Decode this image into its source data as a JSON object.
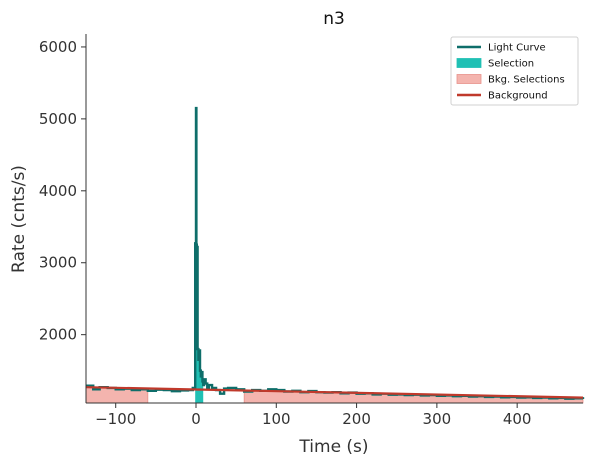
{
  "chart_data": {
    "type": "line",
    "title": "n3",
    "xlabel": "Time (s)",
    "ylabel": "Rate (cnts/s)",
    "xlim": [
      -137,
      482
    ],
    "ylim": [
      1050,
      6180
    ],
    "xticks": [
      -100,
      0,
      100,
      200,
      300,
      400
    ],
    "xtick_labels": [
      "−100",
      "0",
      "100",
      "200",
      "300",
      "400"
    ],
    "yticks": [
      2000,
      3000,
      4000,
      5000,
      6000
    ],
    "ytick_labels": [
      "2000",
      "3000",
      "4000",
      "5000",
      "6000"
    ],
    "grid": false,
    "legend_position": "top-right",
    "colors": {
      "light_curve": "#0e6e6a",
      "selection": "#20c0b4",
      "bkg_selection_fill": "#f4b4ae",
      "bkg_selection_edge": "#e8918a",
      "background": "#c0392b"
    },
    "legend": [
      {
        "label": "Light Curve",
        "kind": "line",
        "color": "#0e6e6a"
      },
      {
        "label": "Selection",
        "kind": "patch",
        "color": "#20c0b4"
      },
      {
        "label": "Bkg. Selections",
        "kind": "patch",
        "color": "#f4b4ae"
      },
      {
        "label": "Background",
        "kind": "line",
        "color": "#c0392b"
      }
    ],
    "series": [
      {
        "name": "Light Curve",
        "x": [
          -137,
          -128,
          -120,
          -110,
          -100,
          -90,
          -80,
          -70,
          -60,
          -50,
          -40,
          -30,
          -20,
          -10,
          -4,
          -2,
          -1,
          0,
          0.5,
          1,
          2,
          3,
          4,
          5,
          6,
          7,
          8,
          9,
          10,
          12,
          14,
          16,
          20,
          25,
          30,
          35,
          40,
          50,
          60,
          70,
          80,
          90,
          100,
          110,
          120,
          130,
          140,
          150,
          160,
          170,
          180,
          190,
          200,
          210,
          220,
          230,
          240,
          250,
          260,
          270,
          280,
          290,
          300,
          310,
          320,
          330,
          340,
          350,
          360,
          370,
          380,
          390,
          400,
          410,
          420,
          430,
          440,
          450,
          460,
          470,
          482
        ],
        "y": [
          1290,
          1240,
          1270,
          1260,
          1240,
          1250,
          1230,
          1240,
          1220,
          1235,
          1230,
          1215,
          1225,
          1230,
          1260,
          1240,
          3270,
          5150,
          3250,
          3220,
          1800,
          1650,
          1780,
          1500,
          1420,
          1480,
          1350,
          1300,
          1380,
          1320,
          1250,
          1300,
          1260,
          1230,
          1180,
          1250,
          1260,
          1240,
          1210,
          1230,
          1220,
          1240,
          1230,
          1210,
          1220,
          1200,
          1215,
          1200,
          1195,
          1200,
          1185,
          1195,
          1180,
          1185,
          1170,
          1180,
          1165,
          1170,
          1160,
          1165,
          1155,
          1160,
          1150,
          1155,
          1145,
          1150,
          1140,
          1145,
          1135,
          1140,
          1130,
          1135,
          1125,
          1130,
          1120,
          1125,
          1115,
          1120,
          1110,
          1115,
          1105
        ]
      },
      {
        "name": "Background",
        "x": [
          -137,
          482
        ],
        "y": [
          1270,
          1125
        ]
      }
    ],
    "selection": {
      "x": [
        -1,
        9
      ]
    },
    "bkg_selections": [
      {
        "x": [
          -137,
          -60
        ]
      },
      {
        "x": [
          60,
          482
        ]
      }
    ]
  }
}
